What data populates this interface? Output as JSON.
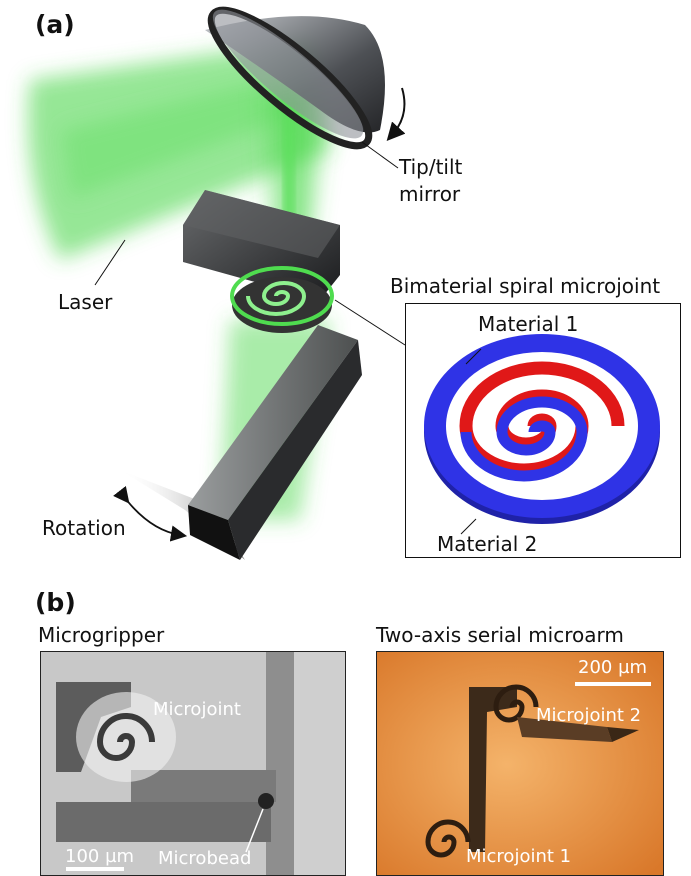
{
  "panel_a": {
    "letter": "(a)",
    "labels": {
      "mirror": [
        "Tip/tilt",
        "mirror"
      ],
      "laser": "Laser",
      "rotation": "Rotation",
      "inset_title": "Bimaterial spiral microjoint",
      "material1": "Material 1",
      "material2": "Material 2"
    },
    "colors": {
      "laser": "#3dd23d",
      "material1": "#e01818",
      "material2": "#2f33e6"
    }
  },
  "panel_b": {
    "letter": "(b)",
    "left": {
      "title": "Microgripper",
      "microjoint": "Microjoint",
      "microbead": "Microbead",
      "scale": "100 µm"
    },
    "right": {
      "title": "Two-axis serial microarm",
      "scale": "200 µm",
      "joint2": "Microjoint 2",
      "joint1": "Microjoint 1"
    }
  }
}
